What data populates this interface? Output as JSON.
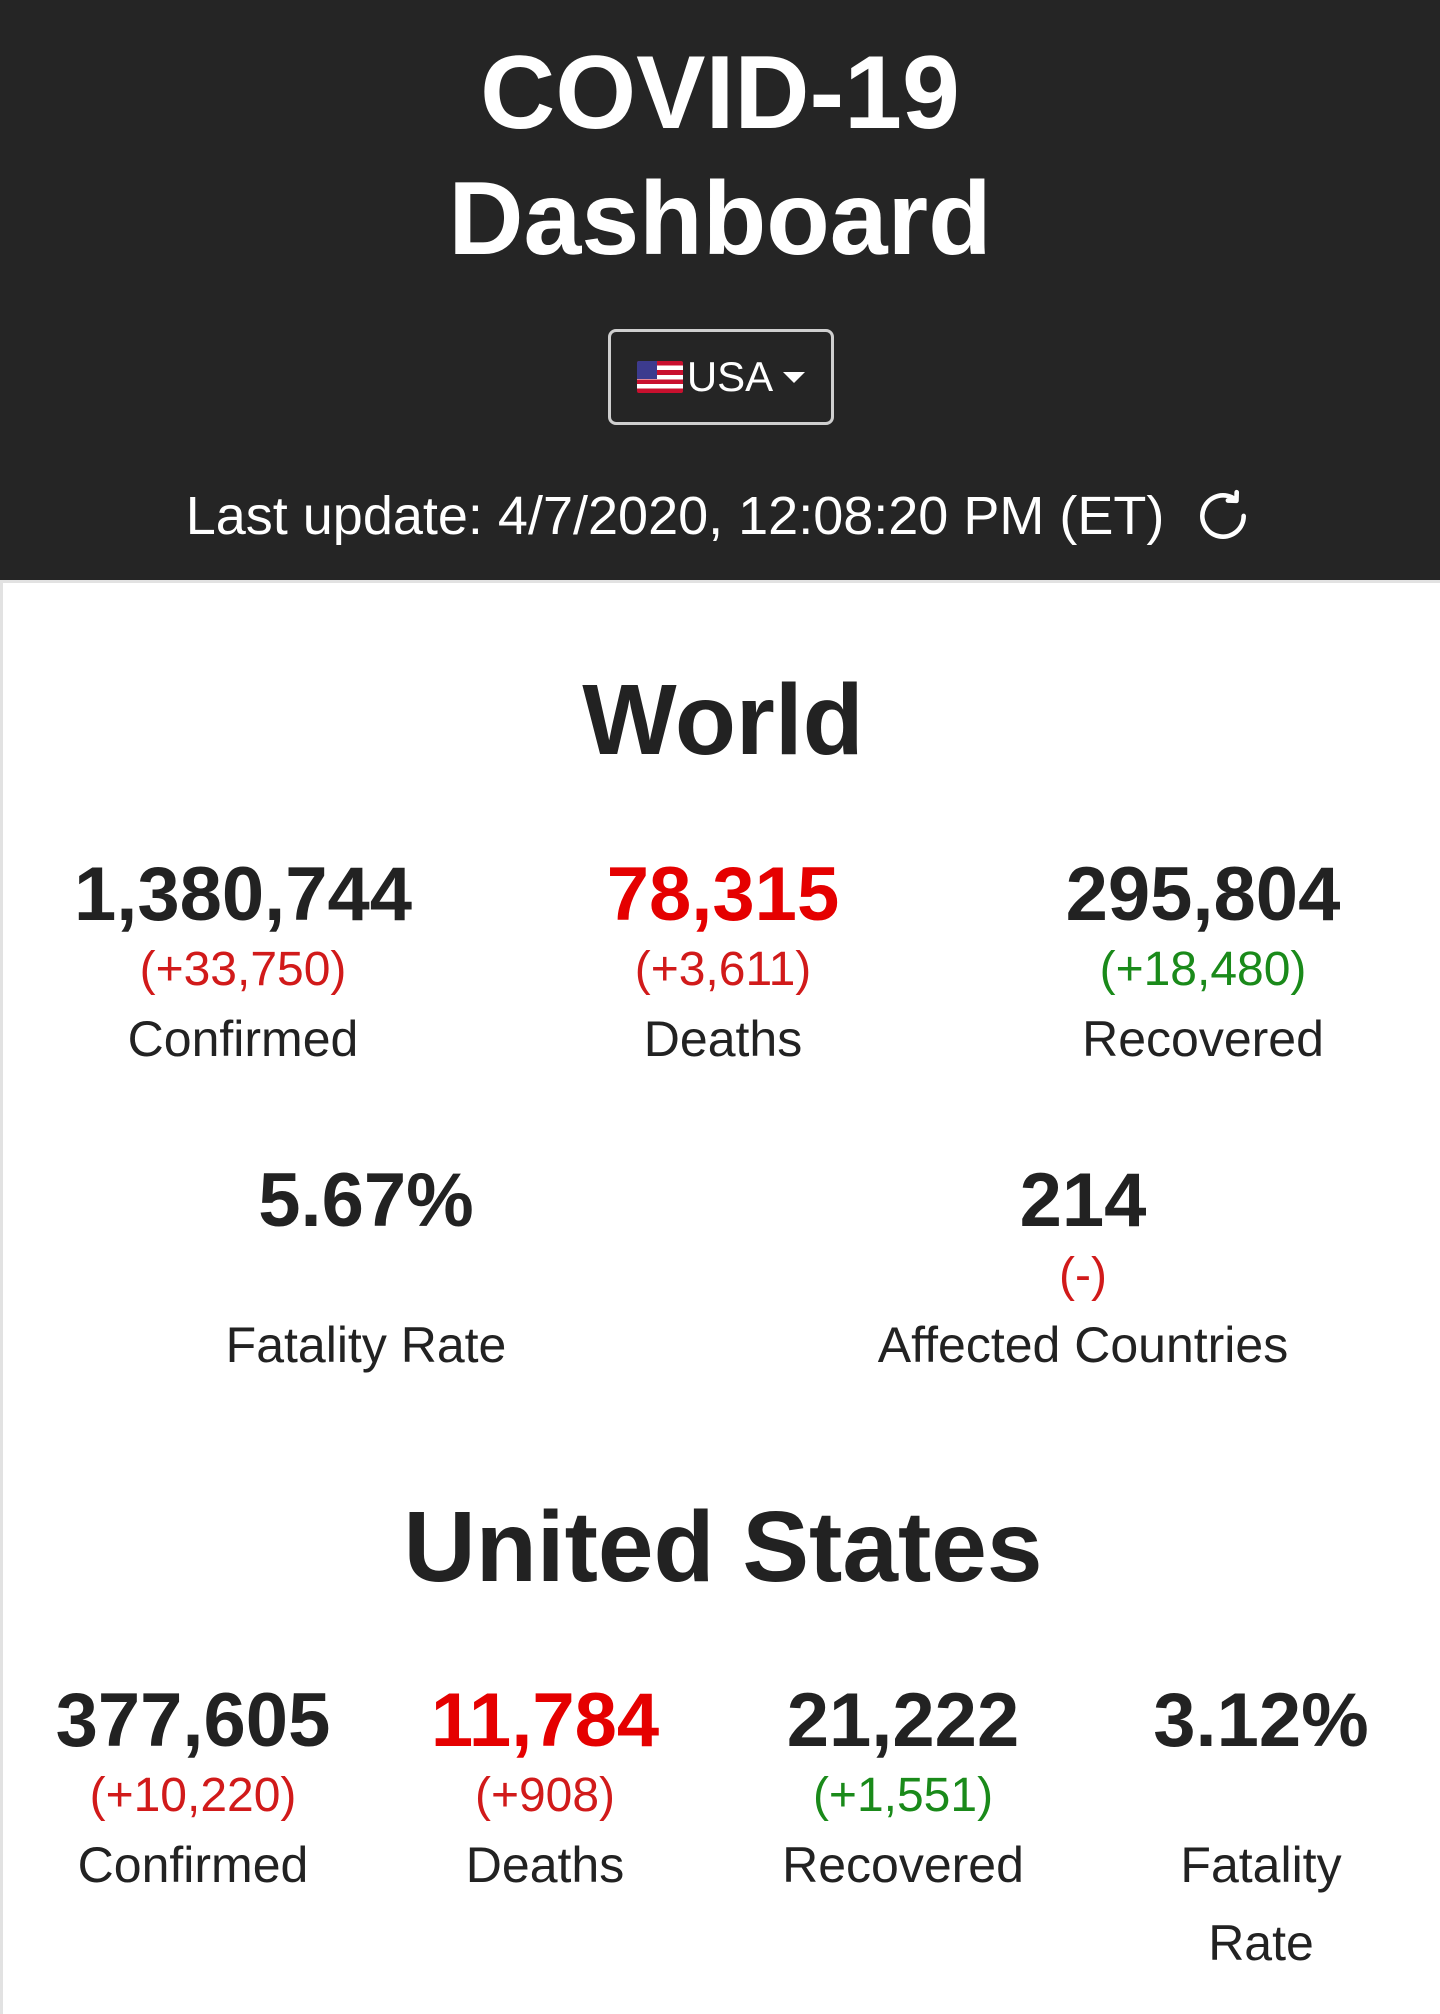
{
  "header": {
    "title_line1": "COVID-19",
    "title_line2": "Dashboard",
    "country_select": {
      "flag": "us-flag-icon",
      "value": "USA"
    },
    "last_update": "Last update: 4/7/2020, 12:08:20 PM (ET)"
  },
  "world": {
    "title": "World",
    "confirmed": {
      "value": "1,380,744",
      "delta": "(+33,750)",
      "label": "Confirmed"
    },
    "deaths": {
      "value": "78,315",
      "delta": "(+3,611)",
      "label": "Deaths"
    },
    "recovered": {
      "value": "295,804",
      "delta": "(+18,480)",
      "label": "Recovered"
    },
    "fatality_rate": {
      "value": "5.67%",
      "label": "Fatality Rate"
    },
    "affected_countries": {
      "value": "214",
      "delta": "(-)",
      "label": "Affected Countries"
    }
  },
  "usa": {
    "title": "United States",
    "confirmed": {
      "value": "377,605",
      "delta": "(+10,220)",
      "label": "Confirmed"
    },
    "deaths": {
      "value": "11,784",
      "delta": "(+908)",
      "label": "Deaths"
    },
    "recovered": {
      "value": "21,222",
      "delta": "(+1,551)",
      "label": "Recovered"
    },
    "fatality_rate": {
      "value": "3.12%",
      "label_line1": "Fatality",
      "label_line2": "Rate"
    }
  },
  "colors": {
    "header_bg": "#252525",
    "deaths": "#e50000",
    "increase": "#d11a1a",
    "recovered_delta": "#1a8a1a"
  }
}
